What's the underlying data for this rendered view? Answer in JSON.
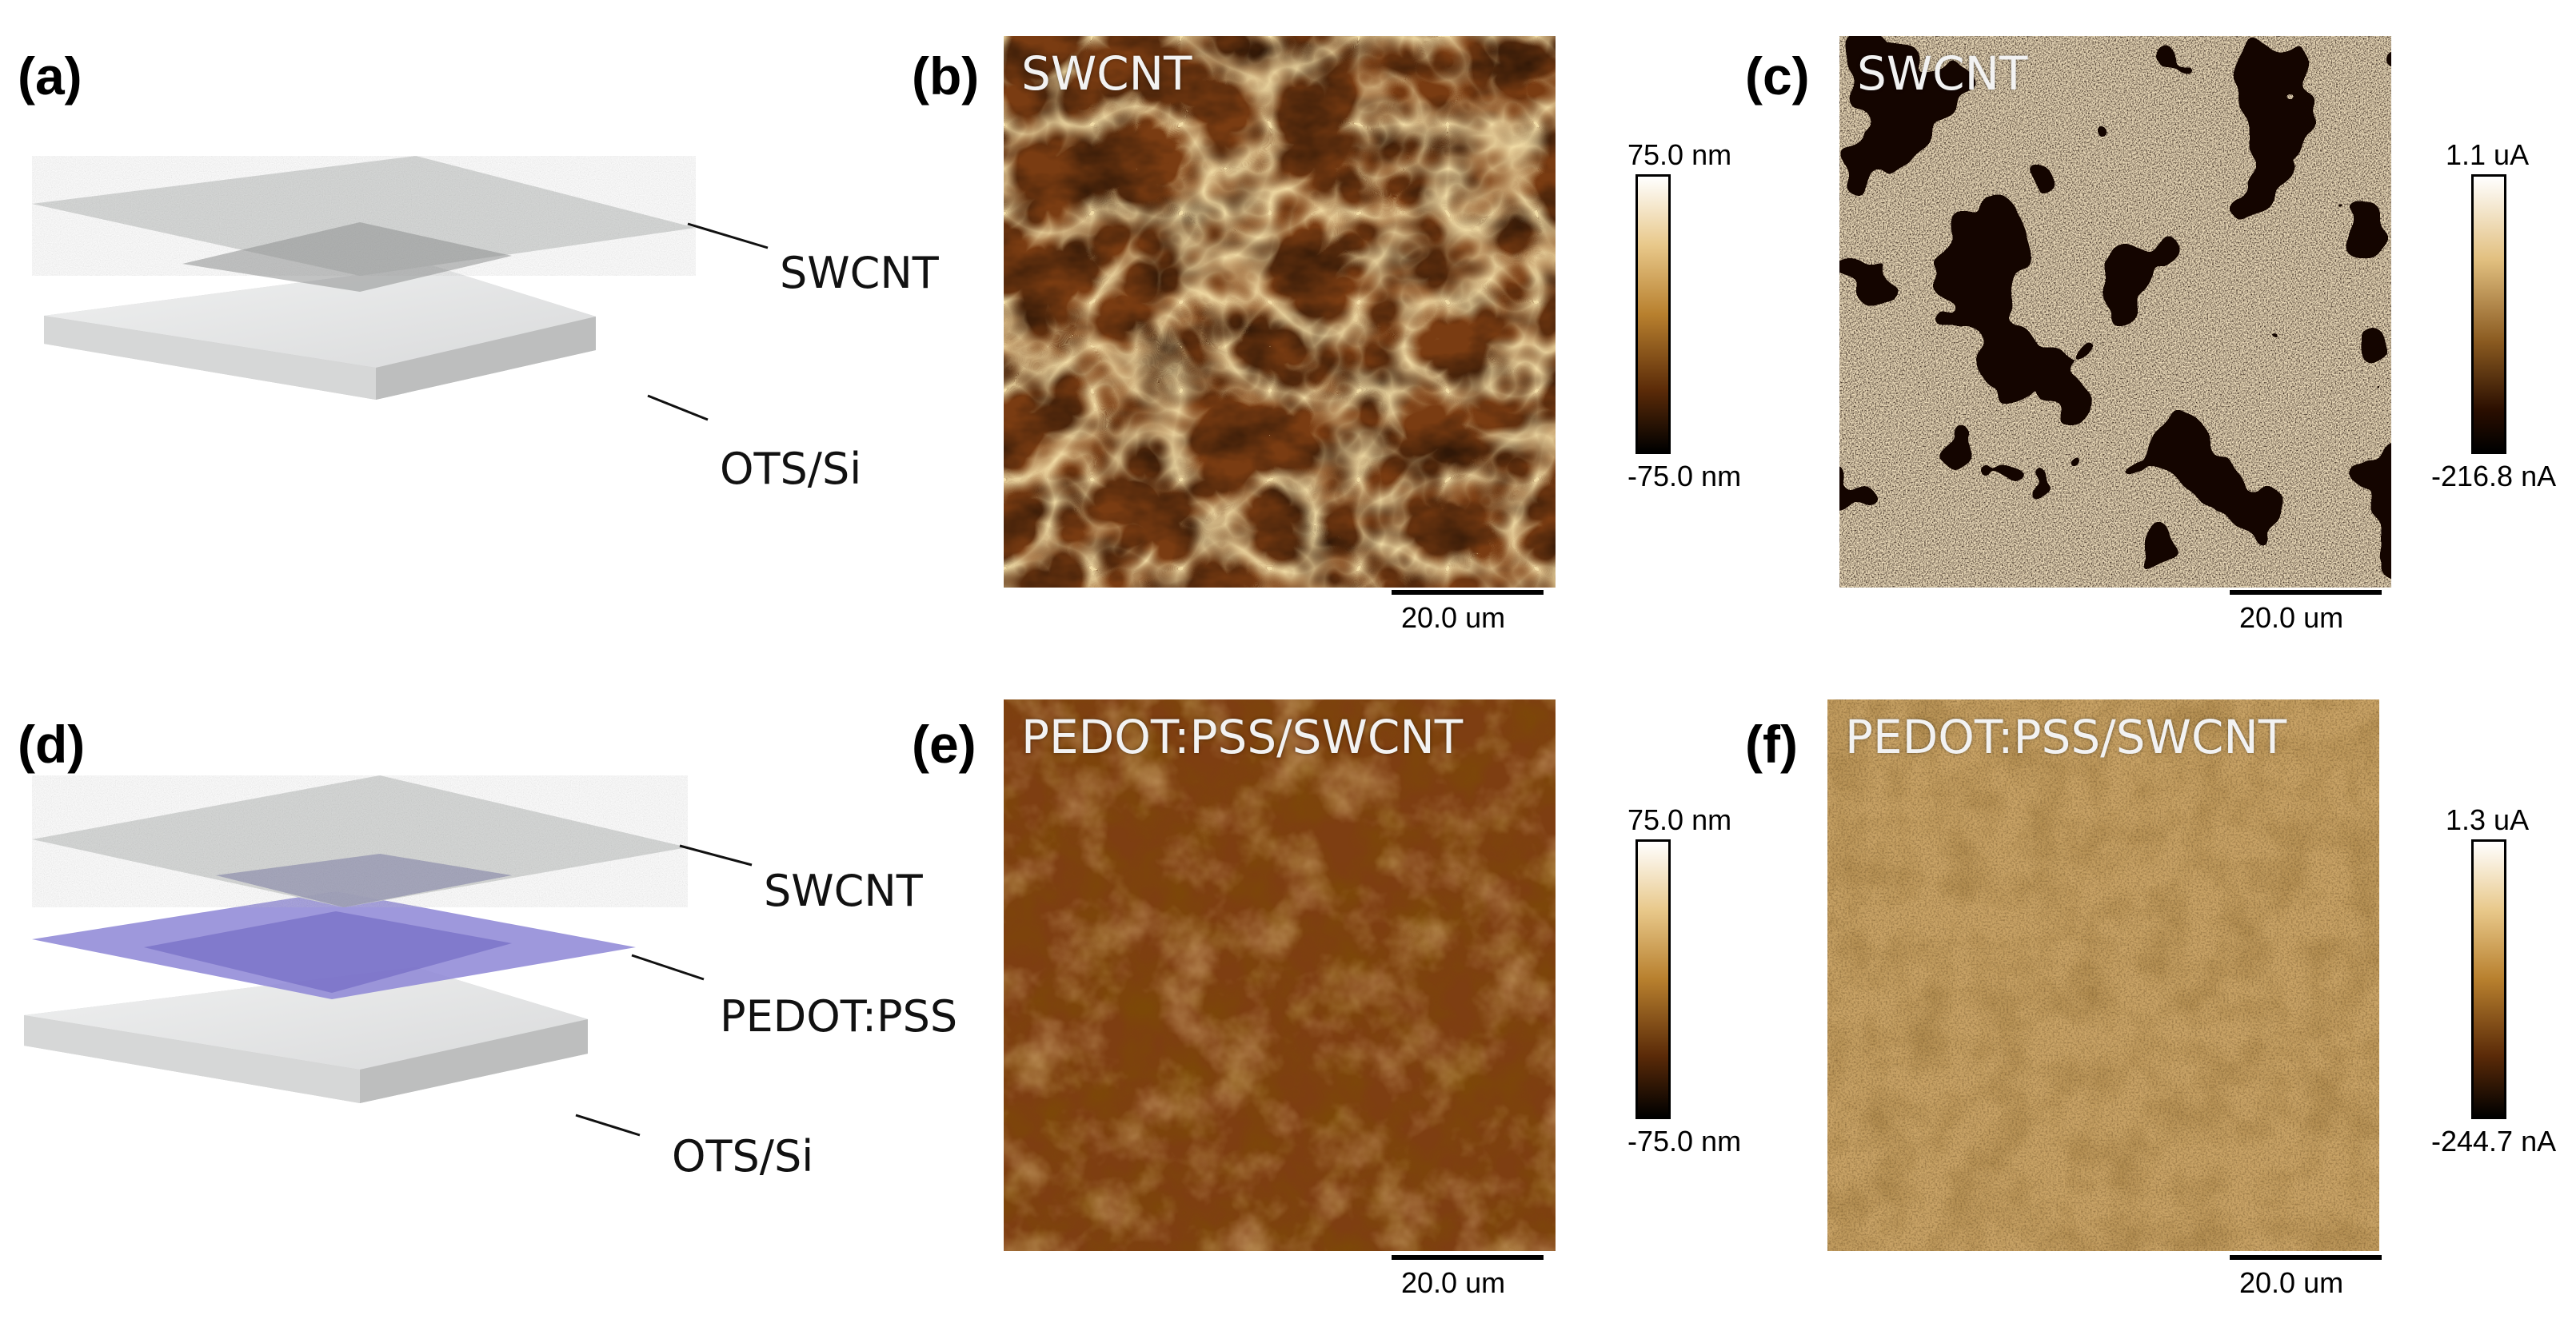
{
  "panels": {
    "a": {
      "letter": "(a)",
      "labels": [
        "SWCNT",
        "OTS/Si"
      ]
    },
    "b": {
      "letter": "(b)",
      "title": "SWCNT",
      "cb_max": "75.0 nm",
      "cb_min": "-75.0 nm",
      "scale": "20.0 um"
    },
    "c": {
      "letter": "(c)",
      "title": "SWCNT",
      "cb_max": "1.1 uA",
      "cb_min": "-216.8 nA",
      "scale": "20.0 um"
    },
    "d": {
      "letter": "(d)",
      "labels": [
        "SWCNT",
        "PEDOT:PSS",
        "OTS/Si"
      ]
    },
    "e": {
      "letter": "(e)",
      "title": "PEDOT:PSS/SWCNT",
      "cb_max": "75.0 nm",
      "cb_min": "-75.0 nm",
      "scale": "20.0 um"
    },
    "f": {
      "letter": "(f)",
      "title": "PEDOT:PSS/SWCNT",
      "cb_max": "1.3 uA",
      "cb_min": "-244.7 nA",
      "scale": "20.0 um"
    }
  },
  "colors": {
    "afm_dark": "#1a0800",
    "afm_mid": "#8a4a1a",
    "afm_light": "#f5e0a0",
    "pedot_layer": "#7b74c9",
    "substrate": "#e4e5e5",
    "swcnt_sheet": "#c9cccb"
  }
}
